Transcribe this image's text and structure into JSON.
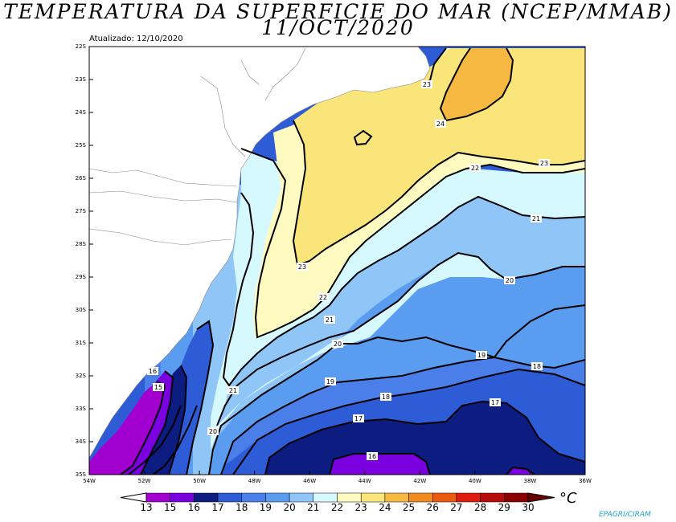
{
  "title": {
    "line1": "TEMPERATURA DA SUPERFICIE DO MAR (NCEP/MMAB)",
    "line2": "11/OCT/2020"
  },
  "updated": "Atualizado: 12/10/2020",
  "credit": "EPAGRI/CIRAM",
  "map": {
    "lat_ticks": [
      "22S",
      "23S",
      "24S",
      "25S",
      "26S",
      "27S",
      "28S",
      "29S",
      "30S",
      "31S",
      "32S",
      "33S",
      "34S",
      "35S"
    ],
    "lon_ticks": [
      "54W",
      "52W",
      "50W",
      "48W",
      "46W",
      "44W",
      "42W",
      "40W",
      "38W",
      "36W"
    ],
    "contour_labels": [
      "23",
      "24",
      "23",
      "22",
      "23",
      "21",
      "22",
      "20",
      "21",
      "20",
      "19",
      "19",
      "18",
      "18",
      "17",
      "17",
      "16",
      "15",
      "21",
      "20",
      "16"
    ]
  },
  "colorbar": {
    "values": [
      "13",
      "15",
      "16",
      "17",
      "18",
      "19",
      "20",
      "21",
      "22",
      "23",
      "24",
      "25",
      "26",
      "27",
      "28",
      "29",
      "30"
    ],
    "colors": [
      "#a100d0",
      "#7a00e0",
      "#0c1c80",
      "#2e5cd6",
      "#4a7ee8",
      "#5a9cf0",
      "#8fc6f7",
      "#d6f8ff",
      "#fffac0",
      "#fae57a",
      "#f5b941",
      "#f08c1e",
      "#eb5a0e",
      "#e01c0c",
      "#b80a0a",
      "#8a0000"
    ],
    "unit": "°C"
  }
}
